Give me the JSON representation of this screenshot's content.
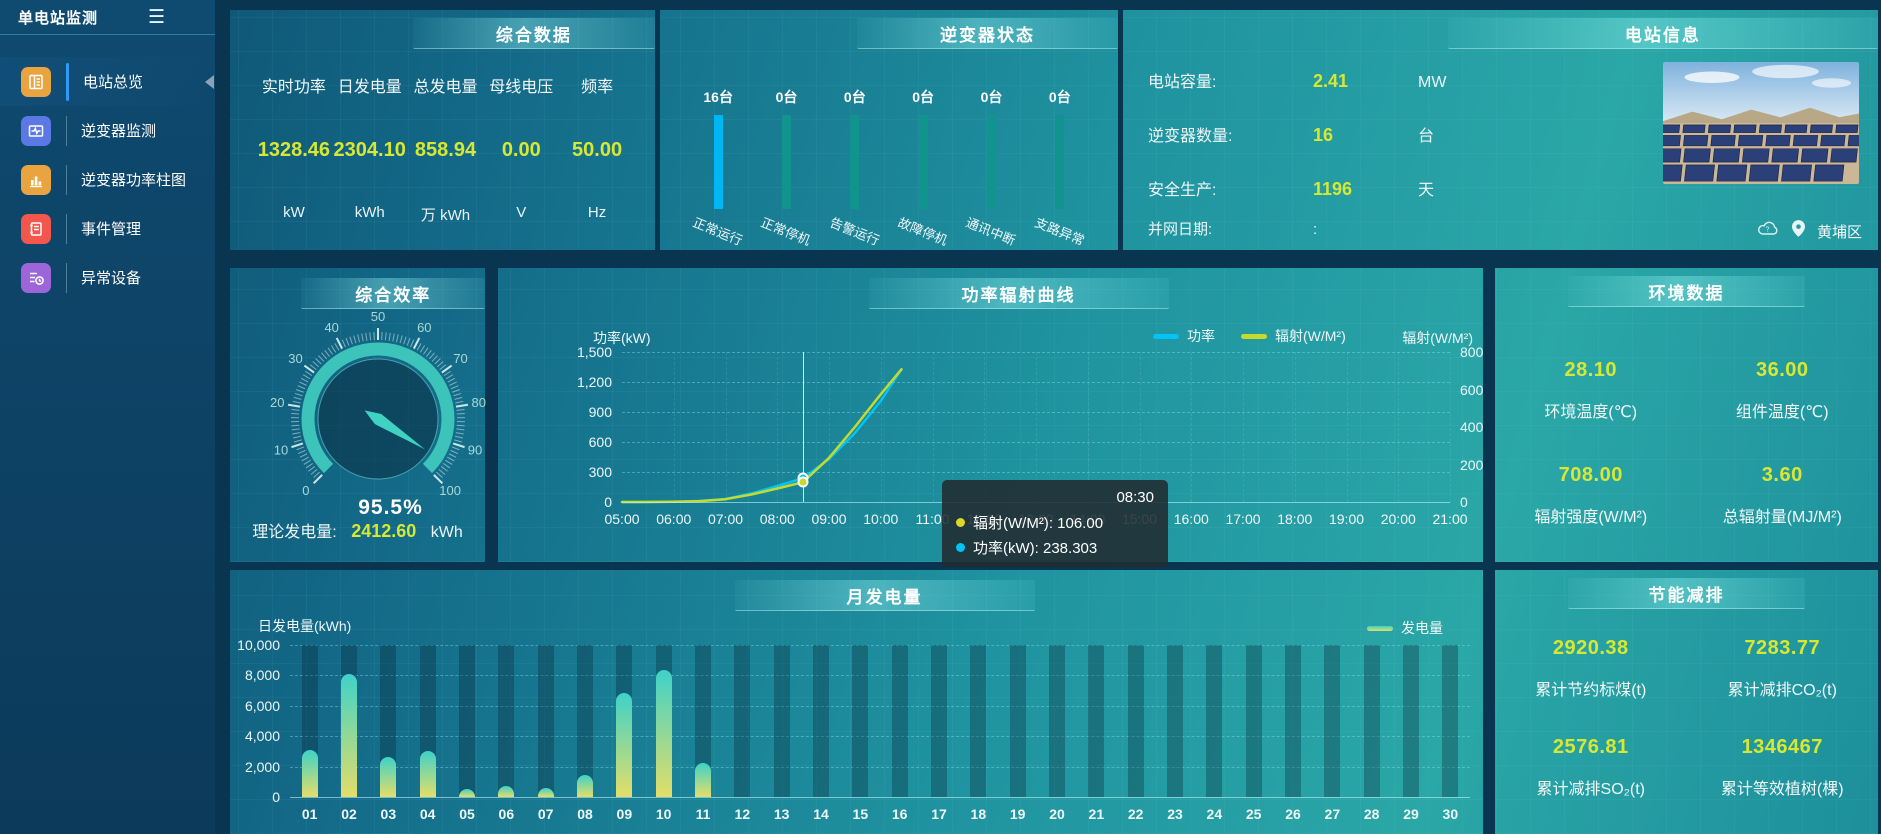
{
  "app": {
    "title": "单电站监测"
  },
  "sidebar": {
    "items": [
      {
        "label": "电站总览",
        "color": "#e9a440",
        "active": true
      },
      {
        "label": "逆变器监测",
        "color": "#5b78e4",
        "active": false
      },
      {
        "label": "逆变器功率柱图",
        "color": "#e9a440",
        "active": false
      },
      {
        "label": "事件管理",
        "color": "#f2564d",
        "active": false
      },
      {
        "label": "异常设备",
        "color": "#9d66d8",
        "active": false
      }
    ]
  },
  "panels": {
    "summary": {
      "title": "综合数据",
      "metrics": [
        {
          "label": "实时功率",
          "value": "1328.46",
          "unit": "kW"
        },
        {
          "label": "日发电量",
          "value": "2304.10",
          "unit": "kWh"
        },
        {
          "label": "总发电量",
          "value": "858.94",
          "unit": "万 kWh"
        },
        {
          "label": "母线电压",
          "value": "0.00",
          "unit": "V"
        },
        {
          "label": "频率",
          "value": "50.00",
          "unit": "Hz"
        }
      ]
    },
    "inverter_status": {
      "title": "逆变器状态"
    },
    "station_info": {
      "title": "电站信息",
      "rows": [
        {
          "label": "电站容量:",
          "value": "2.41",
          "unit": "MW"
        },
        {
          "label": "逆变器数量:",
          "value": "16",
          "unit": "台"
        },
        {
          "label": "安全生产:",
          "value": "1196",
          "unit": "天"
        },
        {
          "label": "并网日期:",
          "value": ":",
          "unit": ""
        }
      ],
      "location": "黄埔区"
    },
    "efficiency": {
      "title": "综合效率",
      "footer_label": "理论发电量:",
      "footer_value": "2412.60",
      "footer_unit": "kWh"
    },
    "power_curve": {
      "title": "功率辐射曲线"
    },
    "environment": {
      "title": "环境数据",
      "metrics": [
        {
          "value": "28.10",
          "label": "环境温度(℃)"
        },
        {
          "value": "36.00",
          "label": "组件温度(℃)"
        },
        {
          "value": "708.00",
          "label": "辐射强度(W/M²)"
        },
        {
          "value": "3.60",
          "label": "总辐射量(MJ/M²)"
        }
      ]
    },
    "monthly": {
      "title": "月发电量"
    },
    "saving": {
      "title": "节能减排",
      "metrics": [
        {
          "value": "2920.38",
          "label": "累计节约标煤(t)"
        },
        {
          "value": "7283.77",
          "label": "累计减排CO₂(t)"
        },
        {
          "value": "2576.81",
          "label": "累计减排SO₂(t)"
        },
        {
          "value": "1346467",
          "label": "累计等效植树(棵)"
        }
      ]
    }
  },
  "chart_data": [
    {
      "type": "bar",
      "title": "逆变器状态",
      "categories": [
        "正常运行",
        "正常停机",
        "告警运行",
        "故障停机",
        "通讯中断",
        "支路异常"
      ],
      "values": [
        16,
        0,
        0,
        0,
        0,
        0
      ],
      "counts": [
        "16台",
        "0台",
        "0台",
        "0台",
        "0台",
        "0台"
      ],
      "unit": "台",
      "highlight_index": 0,
      "highlight_color": "#00b6f3",
      "bar_color": "#11948e"
    },
    {
      "type": "gauge",
      "title": "综合效率",
      "value": 95.5,
      "min": 0,
      "max": 100,
      "display": "95.5%",
      "color": "#3fc9bd"
    },
    {
      "type": "line",
      "title": "功率辐射曲线",
      "x_range": [
        5,
        21
      ],
      "x_labels": [
        "05:00",
        "06:00",
        "07:00",
        "08:00",
        "09:00",
        "10:00",
        "11:00",
        "12:00",
        "13:00",
        "14:00",
        "15:00",
        "16:00",
        "17:00",
        "18:00",
        "19:00",
        "20:00",
        "21:00"
      ],
      "axis_left": {
        "name": "功率(kW)",
        "min": 0,
        "max": 1500,
        "ticks": [
          "0",
          "300",
          "600",
          "900",
          "1,200",
          "1,500"
        ]
      },
      "axis_right": {
        "name": "辐射(W/M²)",
        "min": 0,
        "max": 800,
        "ticks": [
          "0",
          "200",
          "400",
          "600",
          "800"
        ]
      },
      "series": [
        {
          "name": "功率",
          "color": "#00c3f7",
          "axis": "left",
          "points": [
            [
              5,
              0
            ],
            [
              5.5,
              1
            ],
            [
              6,
              3
            ],
            [
              6.5,
              10
            ],
            [
              7,
              30
            ],
            [
              7.5,
              85
            ],
            [
              8,
              160
            ],
            [
              8.5,
              238.303
            ],
            [
              9,
              430
            ],
            [
              9.5,
              690
            ],
            [
              10,
              1010
            ],
            [
              10.4,
              1328.46
            ]
          ]
        },
        {
          "name": "辐射(W/M²)",
          "color": "#c6da2b",
          "axis": "right",
          "points": [
            [
              5,
              0
            ],
            [
              5.5,
              0
            ],
            [
              6,
              1
            ],
            [
              6.5,
              5
            ],
            [
              7,
              15
            ],
            [
              7.5,
              40
            ],
            [
              8,
              72
            ],
            [
              8.5,
              106
            ],
            [
              9,
              235
            ],
            [
              9.5,
              400
            ],
            [
              10,
              575
            ],
            [
              10.4,
              708
            ]
          ]
        }
      ],
      "pointer_time": 8.5,
      "tooltip": {
        "time": "08:30",
        "rows": [
          {
            "name": "辐射(W/M²)",
            "value": "106.00",
            "color": "#d9d926"
          },
          {
            "name": "功率(kW)",
            "value": "238.303",
            "color": "#00c3f7"
          }
        ]
      },
      "legend_position": "top-right",
      "grid": true
    },
    {
      "type": "bar",
      "title": "月发电量",
      "ylabel": "日发电量(kWh)",
      "ylim": [
        0,
        10000
      ],
      "yticks": [
        "0",
        "2,000",
        "4,000",
        "6,000",
        "8,000",
        "10,000"
      ],
      "legend": "发电量",
      "categories": [
        "01",
        "02",
        "03",
        "04",
        "05",
        "06",
        "07",
        "08",
        "09",
        "10",
        "11",
        "12",
        "13",
        "14",
        "15",
        "16",
        "17",
        "18",
        "19",
        "20",
        "21",
        "22",
        "23",
        "24",
        "25",
        "26",
        "27",
        "28",
        "29",
        "30"
      ],
      "values": [
        3090,
        8090,
        2630,
        3020,
        530,
        720,
        590,
        1450,
        6840,
        8360,
        2240,
        0,
        0,
        0,
        0,
        0,
        0,
        0,
        0,
        0,
        0,
        0,
        0,
        0,
        0,
        0,
        0,
        0,
        0,
        0
      ],
      "bar_gradient": [
        "#e4de68",
        "#3ed2c8"
      ],
      "grid": true
    }
  ]
}
